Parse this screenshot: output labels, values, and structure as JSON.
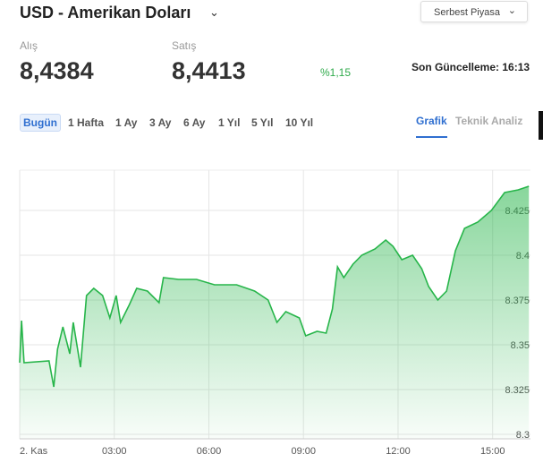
{
  "header": {
    "title": "USD - Amerikan Doları",
    "market": "Serbest Piyasa"
  },
  "quote": {
    "buy_label": "Alış",
    "buy": "8,4384",
    "sell_label": "Satış",
    "sell": "8,4413",
    "change": "%1,15",
    "updated": "Son Güncelleme: 16:13"
  },
  "ranges": [
    "Bugün",
    "1 Hafta",
    "1 Ay",
    "3 Ay",
    "6 Ay",
    "1 Yıl",
    "5 Yıl",
    "10 Yıl"
  ],
  "views": [
    "Grafik",
    "Teknik Analiz"
  ],
  "chart_data": {
    "type": "line",
    "color": "#27b54a",
    "grid": true,
    "x": [
      0,
      0.06,
      0.14,
      0.93,
      1.08,
      1.2,
      1.37,
      1.59,
      1.7,
      1.93,
      2.12,
      2.35,
      2.63,
      2.86,
      3.06,
      3.2,
      3.48,
      3.71,
      4.05,
      4.42,
      4.56,
      5.04,
      5.61,
      6.18,
      6.88,
      7.45,
      7.88,
      8.16,
      8.44,
      8.87,
      9.07,
      9.43,
      9.72,
      9.92,
      10.08,
      10.28,
      10.57,
      10.85,
      11.27,
      11.61,
      11.84,
      12.12,
      12.46,
      12.75,
      12.97,
      13.26,
      13.54,
      13.82,
      14.11,
      14.53,
      14.96,
      15.38,
      15.81,
      16.15
    ],
    "values": [
      8.34,
      8.3635,
      8.34,
      8.341,
      8.3265,
      8.3475,
      8.36,
      8.345,
      8.3625,
      8.3375,
      8.3775,
      8.3815,
      8.3775,
      8.365,
      8.3775,
      8.3625,
      8.3725,
      8.3815,
      8.38,
      8.3735,
      8.3875,
      8.3865,
      8.3865,
      8.3835,
      8.3835,
      8.38,
      8.375,
      8.3625,
      8.3685,
      8.365,
      8.355,
      8.3575,
      8.3565,
      8.37,
      8.3935,
      8.3875,
      8.395,
      8.4,
      8.4035,
      8.4085,
      8.405,
      8.3975,
      8.4,
      8.3925,
      8.3825,
      8.375,
      8.38,
      8.4025,
      8.415,
      8.4185,
      8.425,
      8.435,
      8.4365,
      8.4385
    ],
    "xlim": [
      0,
      16.2
    ],
    "xticks": [
      {
        "value": 0,
        "label": "2. Kas"
      },
      {
        "value": 3,
        "label": "03:00"
      },
      {
        "value": 6,
        "label": "06:00"
      },
      {
        "value": 9,
        "label": "09:00"
      },
      {
        "value": 12,
        "label": "12:00"
      },
      {
        "value": 15,
        "label": "15:00"
      }
    ],
    "ylim": [
      8.3,
      8.45
    ],
    "yticks": [
      8.3,
      8.325,
      8.35,
      8.375,
      8.4,
      8.425
    ]
  }
}
